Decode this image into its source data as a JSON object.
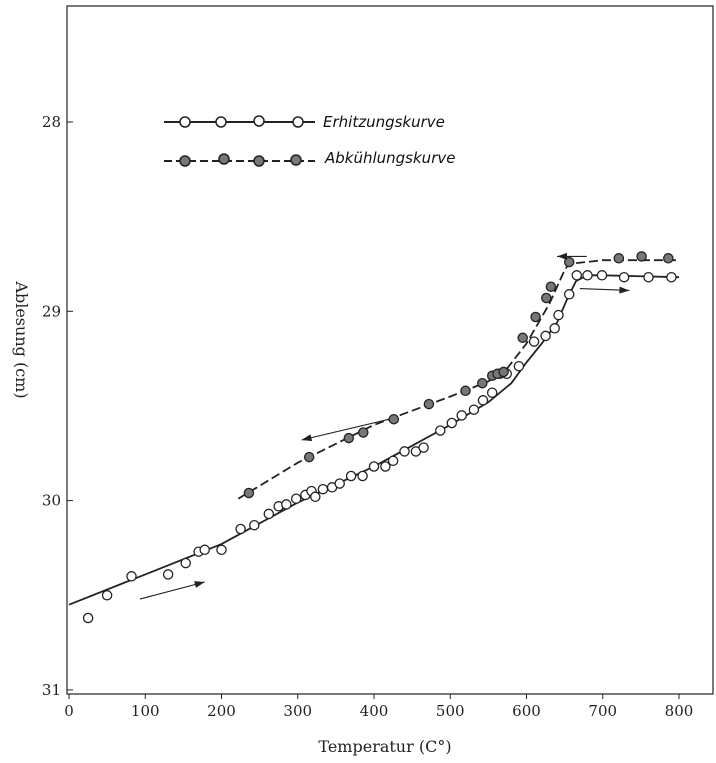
{
  "chart_data": {
    "type": "scatter",
    "xlabel": "Temperatur (C°)",
    "ylabel": "Ablesung (cm)",
    "xlim": [
      0,
      850
    ],
    "ylim": [
      28.5,
      31
    ],
    "y_inverted": true,
    "x_ticks": [
      {
        "value": 0,
        "label": "0"
      },
      {
        "value": 100,
        "label": "100"
      },
      {
        "value": 200,
        "label": "200"
      },
      {
        "value": 300,
        "label": "300"
      },
      {
        "value": 400,
        "label": "400"
      },
      {
        "value": 500,
        "label": "500"
      },
      {
        "value": 600,
        "label": "600"
      },
      {
        "value": 700,
        "label": "700"
      },
      {
        "value": 800,
        "label": "800"
      }
    ],
    "y_ticks": [
      {
        "value": 28,
        "label": "28"
      },
      {
        "value": 29,
        "label": "29"
      },
      {
        "value": 30,
        "label": "30"
      },
      {
        "value": 31,
        "label": "31"
      }
    ],
    "legend_placement": "top-left",
    "grid": false,
    "series": [
      {
        "name": "Erhitzungskurve",
        "line_style": "solid",
        "marker": "open-circle",
        "color": "#222222",
        "points": [
          [
            25,
            30.62
          ],
          [
            50,
            30.5
          ],
          [
            82,
            30.4
          ],
          [
            130,
            30.39
          ],
          [
            153,
            30.33
          ],
          [
            170,
            30.27
          ],
          [
            178,
            30.26
          ],
          [
            200,
            30.26
          ],
          [
            225,
            30.15
          ],
          [
            243,
            30.13
          ],
          [
            262,
            30.07
          ],
          [
            275,
            30.03
          ],
          [
            285,
            30.02
          ],
          [
            298,
            29.99
          ],
          [
            310,
            29.97
          ],
          [
            318,
            29.95
          ],
          [
            323,
            29.98
          ],
          [
            333,
            29.94
          ],
          [
            345,
            29.93
          ],
          [
            355,
            29.91
          ],
          [
            370,
            29.87
          ],
          [
            385,
            29.87
          ],
          [
            400,
            29.82
          ],
          [
            415,
            29.82
          ],
          [
            425,
            29.79
          ],
          [
            440,
            29.74
          ],
          [
            455,
            29.74
          ],
          [
            465,
            29.72
          ],
          [
            487,
            29.63
          ],
          [
            502,
            29.59
          ],
          [
            515,
            29.55
          ],
          [
            531,
            29.52
          ],
          [
            543,
            29.47
          ],
          [
            555,
            29.43
          ],
          [
            565,
            29.33
          ],
          [
            574,
            29.33
          ],
          [
            590,
            29.29
          ],
          [
            610,
            29.16
          ],
          [
            625,
            29.13
          ],
          [
            637,
            29.09
          ],
          [
            642,
            29.02
          ],
          [
            656,
            28.91
          ],
          [
            666,
            28.81
          ],
          [
            680,
            28.81
          ],
          [
            699,
            28.81
          ],
          [
            728,
            28.82
          ],
          [
            760,
            28.82
          ],
          [
            790,
            28.82
          ]
        ],
        "curve": [
          [
            0,
            30.55
          ],
          [
            100,
            30.39
          ],
          [
            200,
            30.23
          ],
          [
            300,
            30.01
          ],
          [
            400,
            29.82
          ],
          [
            500,
            29.6
          ],
          [
            550,
            29.48
          ],
          [
            580,
            29.38
          ],
          [
            600,
            29.27
          ],
          [
            620,
            29.17
          ],
          [
            640,
            29.06
          ],
          [
            655,
            28.92
          ],
          [
            665,
            28.84
          ],
          [
            680,
            28.81
          ],
          [
            700,
            28.81
          ],
          [
            800,
            28.82
          ]
        ]
      },
      {
        "name": "Abkühlungskurve",
        "line_style": "dashed",
        "marker": "filled-circle",
        "color": "#222222",
        "points": [
          [
            236,
            29.96
          ],
          [
            315,
            29.77
          ],
          [
            367,
            29.67
          ],
          [
            386,
            29.64
          ],
          [
            426,
            29.57
          ],
          [
            472,
            29.49
          ],
          [
            520,
            29.42
          ],
          [
            542,
            29.38
          ],
          [
            555,
            29.34
          ],
          [
            562,
            29.33
          ],
          [
            570,
            29.32
          ],
          [
            595,
            29.14
          ],
          [
            612,
            29.03
          ],
          [
            626,
            28.93
          ],
          [
            632,
            28.87
          ],
          [
            656,
            28.74
          ],
          [
            721,
            28.72
          ],
          [
            751,
            28.71
          ],
          [
            786,
            28.72
          ]
        ],
        "curve": [
          [
            222,
            29.99
          ],
          [
            300,
            29.8
          ],
          [
            400,
            29.6
          ],
          [
            500,
            29.45
          ],
          [
            550,
            29.37
          ],
          [
            575,
            29.3
          ],
          [
            600,
            29.17
          ],
          [
            630,
            28.96
          ],
          [
            648,
            28.8
          ],
          [
            655,
            28.75
          ],
          [
            700,
            28.73
          ],
          [
            800,
            28.73
          ]
        ]
      }
    ],
    "arrows": [
      {
        "direction": "right",
        "from": [
          93,
          30.52
        ],
        "to": [
          178,
          30.43
        ]
      },
      {
        "direction": "left",
        "from": [
          420,
          29.57
        ],
        "to": [
          305,
          29.68
        ]
      },
      {
        "direction": "left",
        "from": [
          679,
          28.71
        ],
        "to": [
          640,
          28.71
        ]
      },
      {
        "direction": "right",
        "from": [
          670,
          28.88
        ],
        "to": [
          735,
          28.89
        ]
      }
    ]
  }
}
